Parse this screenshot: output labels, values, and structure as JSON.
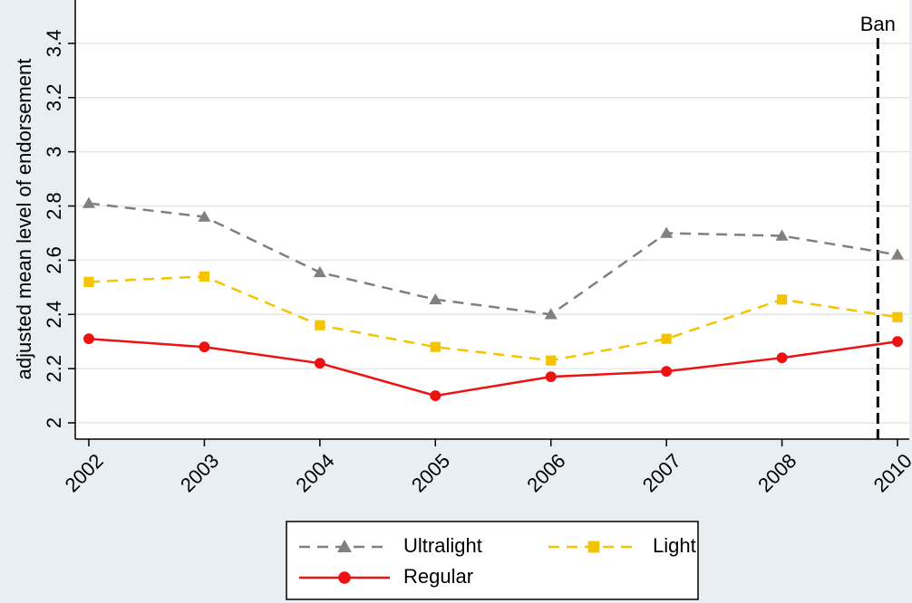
{
  "chart_data": {
    "type": "line",
    "y_label": "adjusted mean level of endorsement",
    "annotation": "Ban",
    "categories": [
      "2002",
      "2003",
      "2004",
      "2005",
      "2006",
      "2007",
      "2008",
      "2010"
    ],
    "series": [
      {
        "name": "Ultralight",
        "color": "#808080",
        "line": "dashed",
        "marker": "triangle",
        "values": [
          2.81,
          2.76,
          2.555,
          2.455,
          2.4,
          2.7,
          2.69,
          2.62
        ]
      },
      {
        "name": "Light",
        "color": "#f5c400",
        "line": "dashed",
        "marker": "square",
        "values": [
          2.52,
          2.54,
          2.36,
          2.28,
          2.23,
          2.31,
          2.455,
          2.39
        ]
      },
      {
        "name": "Regular",
        "color": "#ee1111",
        "line": "solid",
        "marker": "circle",
        "values": [
          2.31,
          2.28,
          2.22,
          2.1,
          2.17,
          2.19,
          2.24,
          2.3
        ]
      }
    ],
    "ylim": [
      1.94,
      3.56
    ],
    "yticks": [
      2,
      2.2,
      2.4,
      2.6,
      2.8,
      3,
      3.2,
      3.4
    ],
    "grid": true
  }
}
